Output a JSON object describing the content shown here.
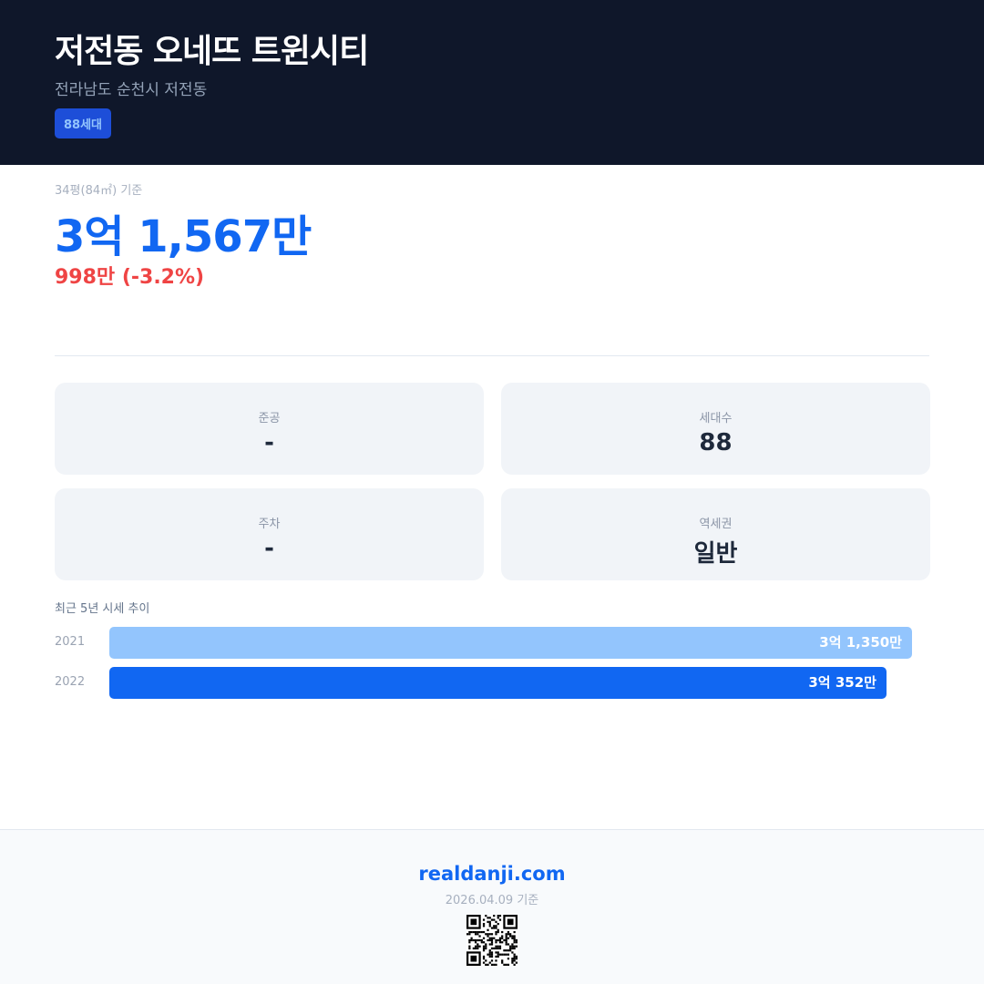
{
  "header": {
    "title": "저전동 오네뜨 트윈시티",
    "address": "전라남도 순천시 저전동",
    "badge": "88세대"
  },
  "price": {
    "basis": "34평(84㎡) 기준",
    "value": "3억 1,567만",
    "change": "998만 (-3.2%)",
    "change_color": "#ef4444"
  },
  "stats": [
    {
      "label": "준공",
      "value": "-"
    },
    {
      "label": "세대수",
      "value": "88"
    },
    {
      "label": "주차",
      "value": "-"
    },
    {
      "label": "역세권",
      "value": "일반"
    }
  ],
  "trend": {
    "title": "최근 5년 시세 추이",
    "rows": [
      {
        "year": "2021",
        "label": "3억 1,350만",
        "value": 31350,
        "color": "#93c5fd"
      },
      {
        "year": "2022",
        "label": "3억 352만",
        "value": 30352,
        "color": "#1167f2"
      }
    ]
  },
  "footer": {
    "site": "realdanji.com",
    "date": "2026.04.09 기준",
    "qr_icon": "qr-code-icon"
  }
}
